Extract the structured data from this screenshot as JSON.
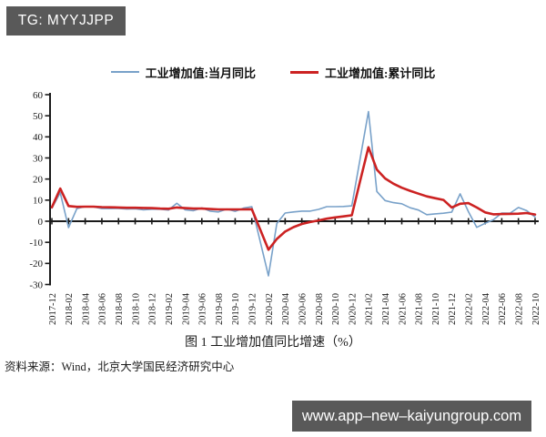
{
  "badge": {
    "text": "TG: MYYJJPP",
    "bg": "#595959",
    "fg": "#ffffff"
  },
  "watermark": {
    "text": "www.app–new–kaiyungroup.com",
    "bg": "#595959",
    "fg": "#ffffff"
  },
  "caption": "图 1 工业增加值同比增速（%）",
  "source_note": "资料来源：Wind，北京大学国民经济研究中心",
  "chart_data": {
    "type": "line",
    "title": "图 1 工业增加值同比增速（%）",
    "xlabel": "",
    "ylabel": "",
    "ylim": [
      -30,
      60
    ],
    "y_ticks": [
      60,
      50,
      40,
      30,
      20,
      10,
      0,
      -10,
      -20,
      -30
    ],
    "grid": false,
    "legend_position": "top",
    "axis_color": "#1a1a1a",
    "x": [
      "2017-12",
      "2018-01",
      "2018-02",
      "2018-03",
      "2018-04",
      "2018-05",
      "2018-06",
      "2018-07",
      "2018-08",
      "2018-09",
      "2018-10",
      "2018-11",
      "2018-12",
      "2019-01",
      "2019-02",
      "2019-03",
      "2019-04",
      "2019-05",
      "2019-06",
      "2019-07",
      "2019-08",
      "2019-09",
      "2019-10",
      "2019-11",
      "2019-12",
      "2020-01",
      "2020-02",
      "2020-03",
      "2020-04",
      "2020-05",
      "2020-06",
      "2020-07",
      "2020-08",
      "2020-09",
      "2020-10",
      "2020-11",
      "2020-12",
      "2021-01",
      "2021-02",
      "2021-03",
      "2021-04",
      "2021-05",
      "2021-06",
      "2021-07",
      "2021-08",
      "2021-09",
      "2021-10",
      "2021-11",
      "2021-12",
      "2022-01",
      "2022-02",
      "2022-03",
      "2022-04",
      "2022-05",
      "2022-06",
      "2022-07",
      "2022-08",
      "2022-09",
      "2022-10"
    ],
    "x_tick_labels": [
      "2017-12",
      "2018-02",
      "2018-04",
      "2018-06",
      "2018-08",
      "2018-10",
      "2018-12",
      "2019-02",
      "2019-04",
      "2019-06",
      "2019-08",
      "2019-10",
      "2019-12",
      "2020-02",
      "2020-04",
      "2020-06",
      "2020-08",
      "2020-10",
      "2020-12",
      "2021-02",
      "2021-04",
      "2021-06",
      "2021-08",
      "2021-10",
      "2021-12",
      "2022-02",
      "2022-04",
      "2022-06",
      "2022-08",
      "2022-10"
    ],
    "x_tick_every": 2,
    "series": [
      {
        "name": "工业增加值:当月同比",
        "color": "#78a1c9",
        "width": 1.6,
        "values": [
          6.2,
          13.5,
          -3.0,
          6.0,
          7.0,
          6.8,
          6.0,
          6.0,
          6.1,
          5.8,
          5.9,
          5.4,
          5.7,
          5.7,
          5.3,
          8.5,
          5.4,
          5.0,
          6.3,
          4.8,
          4.4,
          5.8,
          4.7,
          6.2,
          6.9,
          -9.5,
          -25.9,
          -1.1,
          3.9,
          4.4,
          4.8,
          4.8,
          5.6,
          6.9,
          6.9,
          7.0,
          7.3,
          29.5,
          52.0,
          14.1,
          9.8,
          8.8,
          8.3,
          6.4,
          5.3,
          3.1,
          3.5,
          3.8,
          4.3,
          13.0,
          4.5,
          -2.9,
          -1.0,
          0.7,
          3.9,
          3.8,
          6.5,
          5.0,
          2.0
        ]
      },
      {
        "name": "工业增加值:累计同比",
        "color": "#cc2222",
        "width": 2.6,
        "values": [
          6.6,
          15.5,
          7.2,
          6.8,
          6.9,
          6.9,
          6.7,
          6.6,
          6.5,
          6.4,
          6.4,
          6.3,
          6.2,
          6.0,
          5.9,
          6.5,
          6.2,
          6.0,
          6.0,
          5.8,
          5.6,
          5.6,
          5.6,
          5.6,
          5.7,
          -3.9,
          -13.5,
          -8.4,
          -4.9,
          -2.8,
          -1.3,
          -0.4,
          0.4,
          1.2,
          1.8,
          2.3,
          2.8,
          19.0,
          35.1,
          24.5,
          20.3,
          17.8,
          15.9,
          14.4,
          13.1,
          11.8,
          10.9,
          10.1,
          6.5,
          8.3,
          8.6,
          6.5,
          4.2,
          3.3,
          3.4,
          3.5,
          3.6,
          3.9,
          3.2
        ]
      }
    ]
  }
}
